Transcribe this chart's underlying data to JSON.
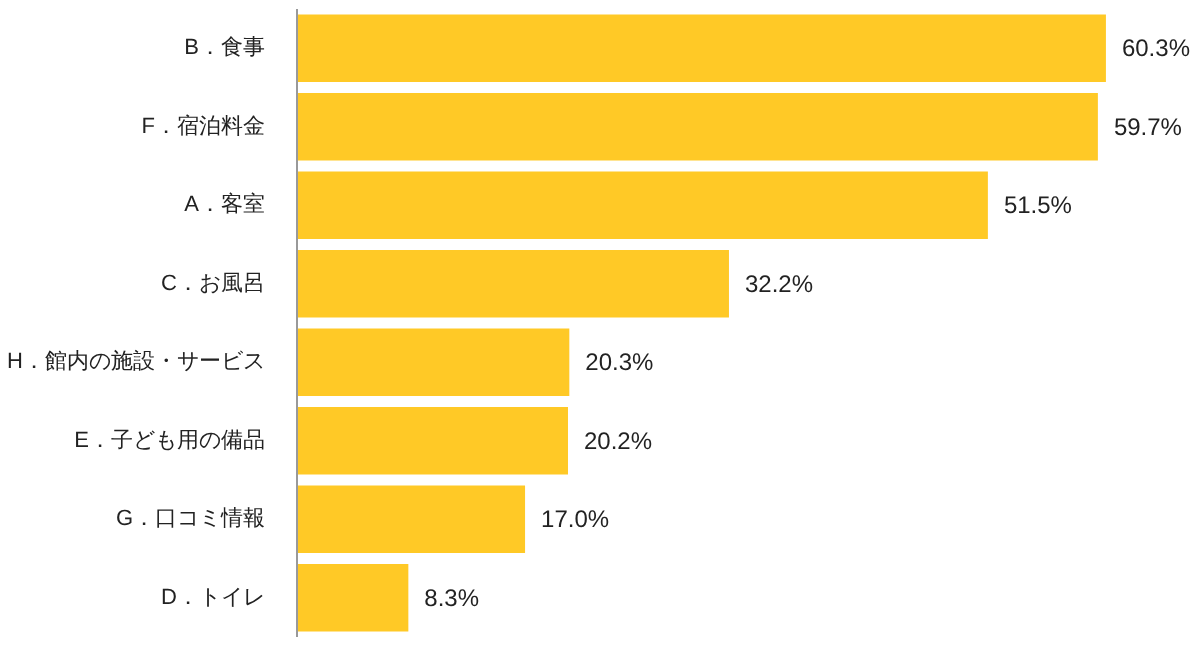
{
  "chart_data": {
    "type": "bar",
    "orientation": "horizontal",
    "categories": [
      "B．食事",
      "F．宿泊料金",
      "A．客室",
      "C．お風呂",
      "H．館内の施設・サービス",
      "E．子ども用の備品",
      "G．口コミ情報",
      "D．トイレ"
    ],
    "values": [
      60.3,
      59.7,
      51.5,
      32.2,
      20.3,
      20.2,
      17.0,
      8.3
    ],
    "value_labels": [
      "60.3%",
      "59.7%",
      "51.5%",
      "32.2%",
      "20.3%",
      "20.2%",
      "17.0%",
      "8.3%"
    ],
    "color": "#ffc926",
    "tick_labels": "y",
    "grid": false
  }
}
